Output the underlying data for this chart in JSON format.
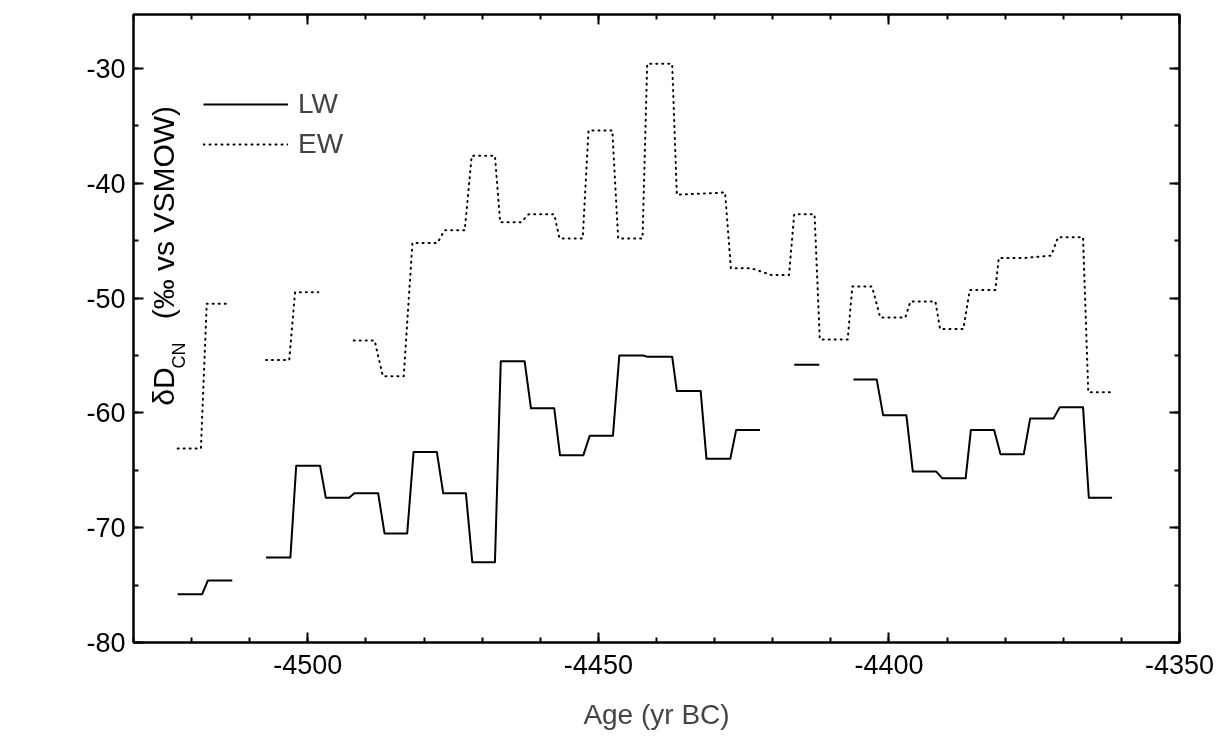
{
  "chart_data": {
    "type": "line",
    "xlabel": "Age (yr BC)",
    "ylabel": "δD$_{CN}$   (‰ vs VSMOW)",
    "xlim": [
      -4530,
      -4350
    ],
    "xticks": [
      -4500,
      -4450,
      -4400,
      -4350
    ],
    "ylim": [
      -80,
      -25.3
    ],
    "yticks": [
      -80,
      -70,
      -60,
      -50,
      -40,
      -30
    ],
    "grid": false,
    "legend": "top left",
    "marker": "none",
    "series": [
      {
        "name": "LW",
        "color": "#000000",
        "line_style": "solid",
        "x": [
          -4522.4,
          -4518.2,
          -4517.2,
          -4513.0,
          -4510,
          -4507.2,
          -4503.0,
          -4502.0,
          -4497.9,
          -4496.9,
          -4492.9,
          -4492.0,
          -4487.9,
          -4486.8,
          -4482.9,
          -4481.8,
          -4477.8,
          -4476.7,
          -4472.8,
          -4471.7,
          -4467.8,
          -4466.8,
          -4462.7,
          -4461.6,
          -4457.6,
          -4456.6,
          -4452.6,
          -4451.5,
          -4447.5,
          -4446.4,
          -4442.3,
          -4441.6,
          -4437.3,
          -4436.5,
          -4432.4,
          -4431.4,
          -4427.3,
          -4426.3,
          -4422.2,
          -4419,
          -4416.3,
          -4412.0,
          -4409,
          -4406.1,
          -4402.1,
          -4401.0,
          -4397.0,
          -4395.9,
          -4391.9,
          -4390.8,
          -4386.8,
          -4385.9,
          -4381.9,
          -4380.8,
          -4376.8,
          -4375.7,
          -4371.7,
          -4370.6,
          -4366.6,
          -4365.6,
          -4361.6
        ],
        "values": [
          -75.8,
          -75.8,
          -74.6,
          -74.6,
          null,
          -72.6,
          -72.6,
          -64.6,
          -64.6,
          -67.4,
          -67.4,
          -67.0,
          -67.0,
          -70.5,
          -70.5,
          -63.4,
          -63.4,
          -67.0,
          -67.0,
          -73.0,
          -73.0,
          -55.5,
          -55.5,
          -59.6,
          -59.6,
          -63.7,
          -63.7,
          -62.0,
          -62.0,
          -55.0,
          -55.0,
          -55.1,
          -55.1,
          -58.1,
          -58.1,
          -64.0,
          -64.0,
          -61.5,
          -61.5,
          null,
          -55.8,
          -55.8,
          null,
          -57.1,
          -57.1,
          -60.2,
          -60.2,
          -65.1,
          -65.1,
          -65.7,
          -65.7,
          -61.5,
          -61.5,
          -63.6,
          -63.6,
          -60.5,
          -60.5,
          -59.5,
          -59.5,
          -67.4,
          -67.4
        ]
      },
      {
        "name": "EW",
        "color": "#000000",
        "line_style": "dotted",
        "x": [
          -4522.4,
          -4518.4,
          -4517.4,
          -4513.4,
          -4510,
          -4507.2,
          -4503.2,
          -4502.2,
          -4498.2,
          -4495,
          -4492.1,
          -4488.5,
          -4487.1,
          -4483.5,
          -4482.0,
          -4477.7,
          -4476.5,
          -4473.0,
          -4471.8,
          -4467.8,
          -4466.9,
          -4463.3,
          -4462.0,
          -4457.6,
          -4456.7,
          -4452.7,
          -4451.7,
          -4447.6,
          -4446.6,
          -4442.4,
          -4441.6,
          -4437.3,
          -4436.5,
          -4432.0,
          -4428.2,
          -4427.2,
          -4423.7,
          -4420.2,
          -4417.2,
          -4416.3,
          -4412.8,
          -4411.9,
          -4407.1,
          -4406.3,
          -4402.9,
          -4401.5,
          -4397.2,
          -4396.3,
          -4392.0,
          -4391.2,
          -4387.2,
          -4386.1,
          -4381.7,
          -4381.1,
          -4376.5,
          -4372.1,
          -4370.9,
          -4366.6,
          -4365.7,
          -4361.7
        ],
        "values": [
          -63.1,
          -63.1,
          -50.5,
          -50.5,
          null,
          -55.4,
          -55.4,
          -49.5,
          -49.5,
          null,
          -53.7,
          -53.7,
          -56.8,
          -56.8,
          -45.2,
          -45.2,
          -44.1,
          -44.1,
          -37.6,
          -37.6,
          -43.4,
          -43.4,
          -42.7,
          -42.7,
          -44.8,
          -44.8,
          -35.4,
          -35.4,
          -44.8,
          -44.8,
          -29.6,
          -29.6,
          -41.0,
          -40.9,
          -40.8,
          -47.4,
          -47.4,
          -48.0,
          -48.0,
          -42.7,
          -42.7,
          -53.6,
          -53.6,
          -49.0,
          -49.0,
          -51.7,
          -51.7,
          -50.3,
          -50.3,
          -52.7,
          -52.7,
          -49.3,
          -49.3,
          -46.5,
          -46.5,
          -46.3,
          -44.7,
          -44.7,
          -58.2,
          -58.2
        ]
      }
    ]
  }
}
